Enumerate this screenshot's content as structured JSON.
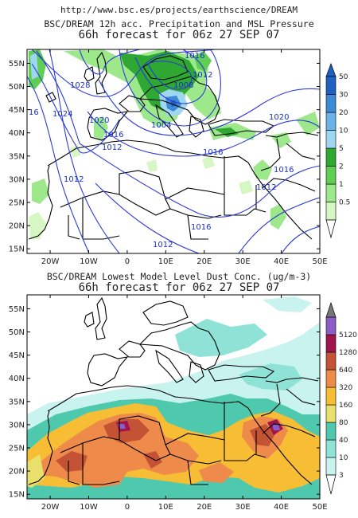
{
  "header": {
    "url": "http://www.bsc.es/projects/earthscience/DREAM"
  },
  "map1": {
    "title": "BSC/DREAM 12h acc. Precipitation and MSL Pressure",
    "subtitle": "66h forecast for 06z 27 SEP 07",
    "lat_ticks": [
      "55N",
      "50N",
      "45N",
      "40N",
      "35N",
      "30N",
      "25N",
      "20N",
      "15N"
    ],
    "lon_ticks": [
      "20W",
      "10W",
      "0",
      "10E",
      "20E",
      "30E",
      "40E",
      "50E"
    ],
    "colorbar": {
      "labels": [
        "0.5",
        "1",
        "2",
        "5",
        "10",
        "20",
        "30",
        "50"
      ],
      "colors": [
        "#d6f7c4",
        "#9de88a",
        "#5fcf53",
        "#2ea832",
        "#9fd6f2",
        "#6bb3e6",
        "#3d8ad6",
        "#2060c0"
      ]
    },
    "isobars": [
      {
        "label": "1016"
      },
      {
        "label": "1012"
      },
      {
        "label": "1008"
      },
      {
        "label": "1028"
      },
      {
        "label": "1024"
      },
      {
        "label": "16"
      },
      {
        "label": "1020"
      },
      {
        "label": "1016"
      },
      {
        "label": "1012"
      },
      {
        "label": "1004"
      },
      {
        "label": "1020"
      },
      {
        "label": "1016"
      },
      {
        "label": "1016"
      },
      {
        "label": "1012"
      },
      {
        "label": "1012"
      },
      {
        "label": "1016"
      },
      {
        "label": "1012"
      }
    ]
  },
  "map2": {
    "title": "BSC/DREAM Lowest Model Level Dust Conc. (ug/m-3)",
    "subtitle": "66h forecast for 06z 27 SEP 07",
    "lat_ticks": [
      "55N",
      "50N",
      "45N",
      "40N",
      "35N",
      "30N",
      "25N",
      "20N",
      "15N"
    ],
    "lon_ticks": [
      "20W",
      "10W",
      "0",
      "10E",
      "20E",
      "30E",
      "40E",
      "50E"
    ],
    "colorbar": {
      "labels": [
        "3",
        "10",
        "40",
        "80",
        "160",
        "320",
        "640",
        "1280",
        "5120"
      ],
      "colors": [
        "#c8f3ee",
        "#8fe3d6",
        "#4fc9ae",
        "#e8e06a",
        "#f7bd35",
        "#ee8a4a",
        "#c45336",
        "#a0144e",
        "#8a5cc4",
        "#777777"
      ]
    }
  }
}
